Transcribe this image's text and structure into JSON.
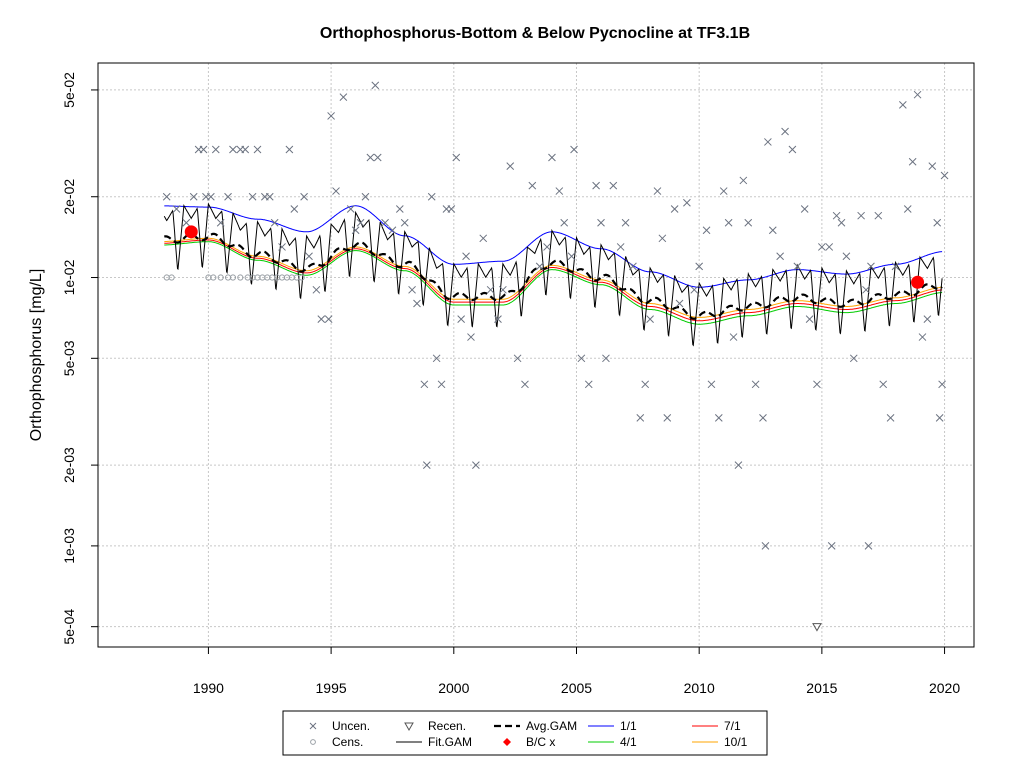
{
  "chart_data": {
    "type": "scatter",
    "title": "Orthophosphorus-Bottom & Below Pycnocline at TF3.1B",
    "xlabel": "",
    "ylabel": "Orthophosphorus [mg/L]",
    "y_scale": "log",
    "xlim": [
      1985.5,
      2021.2
    ],
    "ylim": [
      0.00042,
      0.063
    ],
    "x_ticks": [
      1990,
      1995,
      2000,
      2005,
      2010,
      2015,
      2020
    ],
    "x_tick_labels": [
      "1990",
      "1995",
      "2000",
      "2005",
      "2010",
      "2015",
      "2020"
    ],
    "y_ticks": [
      0.0005,
      0.001,
      0.002,
      0.005,
      0.01,
      0.02,
      0.05
    ],
    "y_tick_labels": [
      "5e-04",
      "1e-03",
      "2e-03",
      "5e-03",
      "1e-02",
      "2e-02",
      "5e-02"
    ],
    "grid": true,
    "legend_placement": "bottom-outside",
    "legend": [
      {
        "key": "uncen",
        "label": "Uncen."
      },
      {
        "key": "cens",
        "label": "Cens."
      },
      {
        "key": "recen",
        "label": "Recen."
      },
      {
        "key": "fitgam",
        "label": "Fit.GAM"
      },
      {
        "key": "avggam",
        "label": "Avg.GAM"
      },
      {
        "key": "bcx",
        "label": "B/C x"
      },
      {
        "key": "r11",
        "label": "1/1"
      },
      {
        "key": "r41",
        "label": "4/1"
      },
      {
        "key": "r71",
        "label": "7/1"
      },
      {
        "key": "r101",
        "label": "10/1"
      }
    ],
    "colors": {
      "uncen": "#6b7280",
      "cens": "#9aa0a6",
      "fitgam": "#000000",
      "avggam": "#000000",
      "bcx": "#ff0000",
      "r11": "#0000ff",
      "r41": "#00cc00",
      "r71": "#ff0000",
      "r101": "#ffa500"
    },
    "series": [
      {
        "name": "Uncen.",
        "points": [
          [
            1988.3,
            0.02
          ],
          [
            1988.7,
            0.018
          ],
          [
            1989.1,
            0.016
          ],
          [
            1989.4,
            0.02
          ],
          [
            1989.6,
            0.03
          ],
          [
            1989.8,
            0.03
          ],
          [
            1989.9,
            0.02
          ],
          [
            1990.1,
            0.02
          ],
          [
            1990.3,
            0.03
          ],
          [
            1990.5,
            0.016
          ],
          [
            1990.8,
            0.02
          ],
          [
            1991.0,
            0.03
          ],
          [
            1991.3,
            0.03
          ],
          [
            1991.5,
            0.03
          ],
          [
            1991.8,
            0.02
          ],
          [
            1992.0,
            0.03
          ],
          [
            1992.3,
            0.02
          ],
          [
            1992.5,
            0.02
          ],
          [
            1992.7,
            0.016
          ],
          [
            1993.0,
            0.013
          ],
          [
            1993.3,
            0.03
          ],
          [
            1993.5,
            0.018
          ],
          [
            1993.9,
            0.02
          ],
          [
            1994.1,
            0.012
          ],
          [
            1994.4,
            0.009
          ],
          [
            1994.6,
            0.007
          ],
          [
            1994.9,
            0.007
          ],
          [
            1995.0,
            0.04
          ],
          [
            1995.2,
            0.021
          ],
          [
            1995.5,
            0.047
          ],
          [
            1995.8,
            0.018
          ],
          [
            1996.0,
            0.015
          ],
          [
            1996.2,
            0.016
          ],
          [
            1996.4,
            0.02
          ],
          [
            1996.6,
            0.028
          ],
          [
            1996.8,
            0.052
          ],
          [
            1996.9,
            0.028
          ],
          [
            1997.2,
            0.016
          ],
          [
            1997.5,
            0.015
          ],
          [
            1997.8,
            0.018
          ],
          [
            1998.0,
            0.016
          ],
          [
            1998.3,
            0.009
          ],
          [
            1998.5,
            0.008
          ],
          [
            1998.8,
            0.004
          ],
          [
            1998.9,
            0.002
          ],
          [
            1999.1,
            0.02
          ],
          [
            1999.3,
            0.005
          ],
          [
            1999.5,
            0.004
          ],
          [
            1999.7,
            0.018
          ],
          [
            1999.9,
            0.018
          ],
          [
            2000.1,
            0.028
          ],
          [
            2000.3,
            0.007
          ],
          [
            2000.5,
            0.012
          ],
          [
            2000.7,
            0.006
          ],
          [
            2000.9,
            0.002
          ],
          [
            2001.2,
            0.014
          ],
          [
            2001.5,
            0.009
          ],
          [
            2001.8,
            0.007
          ],
          [
            2002.0,
            0.009
          ],
          [
            2002.3,
            0.026
          ],
          [
            2002.6,
            0.005
          ],
          [
            2002.9,
            0.004
          ],
          [
            2003.2,
            0.022
          ],
          [
            2003.5,
            0.011
          ],
          [
            2003.8,
            0.013
          ],
          [
            2004.0,
            0.028
          ],
          [
            2004.3,
            0.021
          ],
          [
            2004.5,
            0.016
          ],
          [
            2004.8,
            0.012
          ],
          [
            2004.9,
            0.03
          ],
          [
            2005.2,
            0.005
          ],
          [
            2005.5,
            0.004
          ],
          [
            2005.8,
            0.022
          ],
          [
            2006.0,
            0.016
          ],
          [
            2006.2,
            0.005
          ],
          [
            2006.5,
            0.022
          ],
          [
            2006.8,
            0.013
          ],
          [
            2007.0,
            0.016
          ],
          [
            2007.3,
            0.011
          ],
          [
            2007.6,
            0.003
          ],
          [
            2007.8,
            0.004
          ],
          [
            2008.0,
            0.007
          ],
          [
            2008.3,
            0.021
          ],
          [
            2008.5,
            0.014
          ],
          [
            2008.7,
            0.003
          ],
          [
            2009.0,
            0.018
          ],
          [
            2009.2,
            0.008
          ],
          [
            2009.5,
            0.019
          ],
          [
            2009.8,
            0.009
          ],
          [
            2010.0,
            0.011
          ],
          [
            2010.3,
            0.015
          ],
          [
            2010.5,
            0.004
          ],
          [
            2010.8,
            0.003
          ],
          [
            2011.0,
            0.021
          ],
          [
            2011.2,
            0.016
          ],
          [
            2011.4,
            0.006
          ],
          [
            2011.6,
            0.002
          ],
          [
            2011.8,
            0.023
          ],
          [
            2012.0,
            0.016
          ],
          [
            2012.3,
            0.004
          ],
          [
            2012.6,
            0.003
          ],
          [
            2012.8,
            0.032
          ],
          [
            2013.0,
            0.015
          ],
          [
            2013.3,
            0.012
          ],
          [
            2013.5,
            0.035
          ],
          [
            2013.8,
            0.03
          ],
          [
            2014.0,
            0.011
          ],
          [
            2014.3,
            0.018
          ],
          [
            2014.5,
            0.007
          ],
          [
            2014.8,
            0.004
          ],
          [
            2015.0,
            0.013
          ],
          [
            2015.3,
            0.013
          ],
          [
            2015.6,
            0.017
          ],
          [
            2015.8,
            0.016
          ],
          [
            2016.0,
            0.012
          ],
          [
            2016.3,
            0.005
          ],
          [
            2016.6,
            0.017
          ],
          [
            2016.8,
            0.009
          ],
          [
            2017.0,
            0.011
          ],
          [
            2017.3,
            0.017
          ],
          [
            2017.5,
            0.004
          ],
          [
            2017.8,
            0.003
          ],
          [
            2018.0,
            0.011
          ],
          [
            2018.3,
            0.044
          ],
          [
            2018.5,
            0.018
          ],
          [
            2018.7,
            0.027
          ],
          [
            2018.9,
            0.048
          ],
          [
            2019.1,
            0.006
          ],
          [
            2019.3,
            0.007
          ],
          [
            2019.5,
            0.026
          ],
          [
            2019.7,
            0.016
          ],
          [
            2019.8,
            0.003
          ],
          [
            2019.9,
            0.004
          ],
          [
            2020.0,
            0.024
          ],
          [
            2012.7,
            0.001
          ],
          [
            2015.4,
            0.001
          ],
          [
            2016.9,
            0.001
          ]
        ]
      },
      {
        "name": "Cens.",
        "points": [
          [
            1988.3,
            0.01
          ],
          [
            1988.5,
            0.01
          ],
          [
            1990.0,
            0.01
          ],
          [
            1990.2,
            0.01
          ],
          [
            1990.5,
            0.01
          ],
          [
            1990.8,
            0.01
          ],
          [
            1991.0,
            0.01
          ],
          [
            1991.3,
            0.01
          ],
          [
            1991.6,
            0.01
          ],
          [
            1991.8,
            0.01
          ],
          [
            1992.0,
            0.01
          ],
          [
            1992.2,
            0.01
          ],
          [
            1992.4,
            0.01
          ],
          [
            1992.6,
            0.01
          ],
          [
            1992.8,
            0.01
          ],
          [
            1993.0,
            0.01
          ],
          [
            1993.2,
            0.01
          ],
          [
            1993.4,
            0.01
          ],
          [
            1993.6,
            0.01
          ],
          [
            1993.8,
            0.01
          ]
        ]
      },
      {
        "name": "Recen.",
        "points": [
          [
            2014.8,
            0.0005
          ]
        ]
      },
      {
        "name": "B/C x",
        "points": [
          [
            1989.3,
            0.0148
          ],
          [
            2018.9,
            0.0096
          ]
        ]
      }
    ],
    "trend_components": {
      "description_note": "",
      "years": [
        1988,
        1990,
        1992,
        1994,
        1996,
        1998,
        2000,
        2002,
        2004,
        2006,
        2008,
        2010,
        2012,
        2014,
        2016,
        2018,
        2020
      ],
      "avg_gam": [
        0.0138,
        0.0142,
        0.0122,
        0.0108,
        0.0132,
        0.0112,
        0.0085,
        0.0085,
        0.0113,
        0.01,
        0.0082,
        0.0072,
        0.0078,
        0.0084,
        0.008,
        0.0086,
        0.0094
      ],
      "r11": [
        0.0185,
        0.0183,
        0.0165,
        0.0148,
        0.0185,
        0.0143,
        0.0112,
        0.0115,
        0.0148,
        0.0128,
        0.0105,
        0.0092,
        0.0098,
        0.0107,
        0.0103,
        0.0112,
        0.0125
      ],
      "r41": [
        0.0132,
        0.0136,
        0.0116,
        0.0102,
        0.0126,
        0.0106,
        0.0079,
        0.0079,
        0.0107,
        0.0094,
        0.0076,
        0.0067,
        0.0072,
        0.0078,
        0.0074,
        0.008,
        0.0088
      ],
      "r71": [
        0.0134,
        0.0138,
        0.0118,
        0.0104,
        0.0128,
        0.0108,
        0.0081,
        0.0081,
        0.0109,
        0.0096,
        0.0078,
        0.0069,
        0.0074,
        0.008,
        0.0076,
        0.0082,
        0.009
      ],
      "r101": [
        0.0136,
        0.014,
        0.012,
        0.0106,
        0.013,
        0.011,
        0.0083,
        0.0083,
        0.0111,
        0.0098,
        0.008,
        0.0071,
        0.0076,
        0.0082,
        0.0078,
        0.0084,
        0.0092
      ],
      "fit_gam_seasonal_amplitude": 0.33
    }
  }
}
